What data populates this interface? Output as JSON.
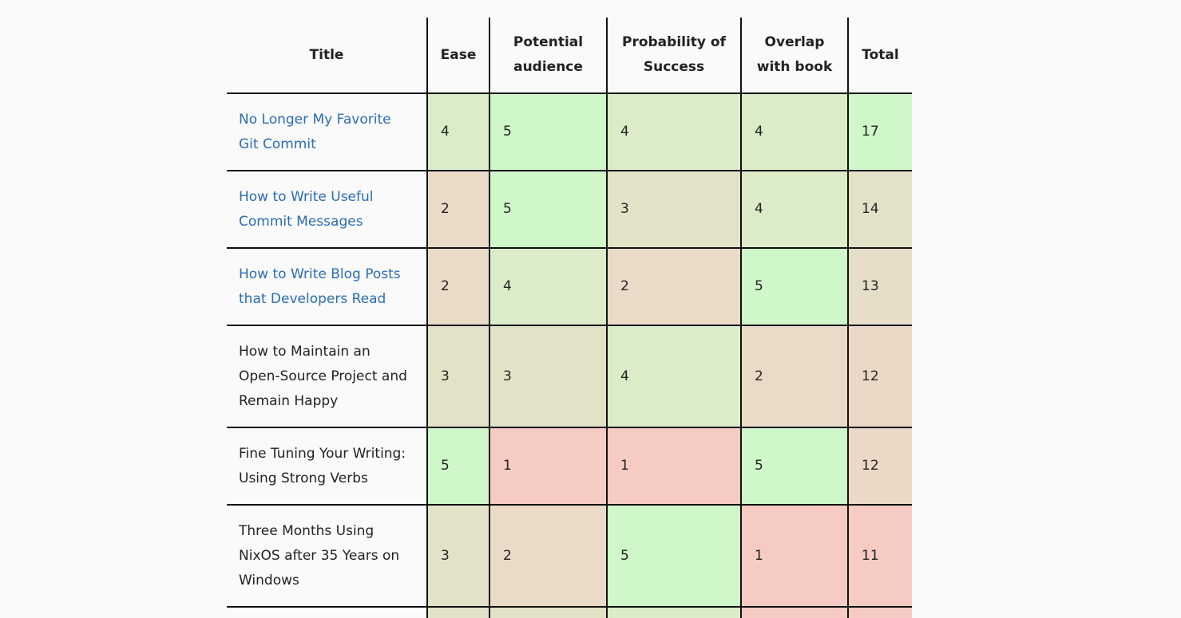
{
  "table": {
    "headers": {
      "title": "Title",
      "ease": "Ease",
      "audience": "Potential audience",
      "probability": "Probability of Success",
      "overlap": "Overlap with book",
      "total": "Total"
    },
    "rows": [
      {
        "title": "No Longer My Favorite Git Commit",
        "link": true,
        "ease": "4",
        "audience": "5",
        "probability": "4",
        "overlap": "4",
        "total": "17"
      },
      {
        "title": "How to Write Useful Commit Messages",
        "link": true,
        "ease": "2",
        "audience": "5",
        "probability": "3",
        "overlap": "4",
        "total": "14"
      },
      {
        "title": "How to Write Blog Posts that Developers Read",
        "link": true,
        "ease": "2",
        "audience": "4",
        "probability": "2",
        "overlap": "5",
        "total": "13"
      },
      {
        "title": "How to Maintain an Open-Source Project and Remain Happy",
        "link": false,
        "ease": "3",
        "audience": "3",
        "probability": "4",
        "overlap": "2",
        "total": "12"
      },
      {
        "title": "Fine Tuning Your Writing: Using Strong Verbs",
        "link": false,
        "ease": "5",
        "audience": "1",
        "probability": "1",
        "overlap": "5",
        "total": "12"
      },
      {
        "title": "Three Months Using NixOS after 35 Years on Windows",
        "link": false,
        "ease": "3",
        "audience": "2",
        "probability": "5",
        "overlap": "1",
        "total": "11"
      }
    ]
  },
  "colors": {
    "link": "#2a6db3",
    "score_1": "#f6cbc4",
    "score_2": "#eadac8",
    "score_3": "#e2e2c8",
    "score_4": "#dbedc8",
    "score_5": "#cff7c9"
  }
}
